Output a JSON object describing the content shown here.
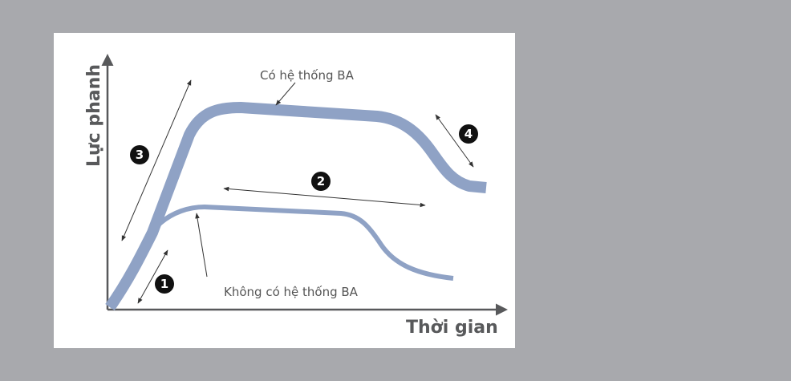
{
  "diagram": {
    "x_axis_label": "Thời gian",
    "y_axis_label": "Lực phanh",
    "curve_with_ba_label": "Có hệ thống BA",
    "curve_without_ba_label": "Không có hệ thống BA",
    "phases": [
      "1",
      "2",
      "3",
      "4"
    ],
    "colors": {
      "background": "#a8a9ad",
      "panel": "#ffffff",
      "curve": "#8fa2c5",
      "axis": "#58595b",
      "arrow": "#333333",
      "badge": "#111111"
    }
  }
}
